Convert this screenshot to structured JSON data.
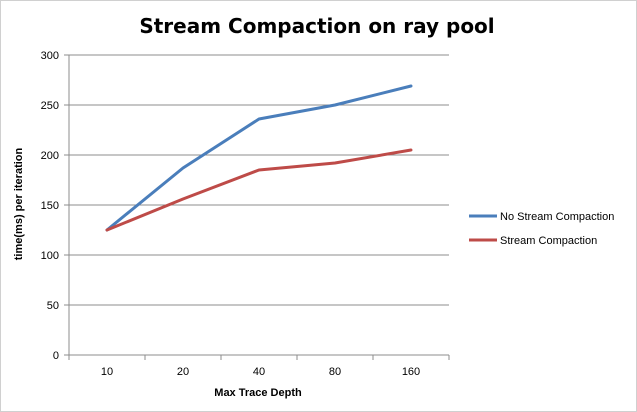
{
  "chart_data": {
    "type": "line",
    "title": "Stream Compaction on ray pool",
    "xlabel": "Max Trace  Depth",
    "ylabel": "time(ms) per iteration",
    "categories": [
      "10",
      "20",
      "40",
      "80",
      "160"
    ],
    "ylim": [
      0,
      300
    ],
    "yticks": [
      0,
      50,
      100,
      150,
      200,
      250,
      300
    ],
    "grid": true,
    "legend_position": "right",
    "series": [
      {
        "name": "No Stream Compaction",
        "color": "#4a7ebb",
        "values": [
          125,
          187,
          236,
          250,
          269
        ]
      },
      {
        "name": "Stream Compaction",
        "color": "#be4b48",
        "values": [
          125,
          156,
          185,
          192,
          205
        ]
      }
    ]
  },
  "colors": {
    "grid": "#8c8c8c",
    "axis": "#8c8c8c"
  }
}
